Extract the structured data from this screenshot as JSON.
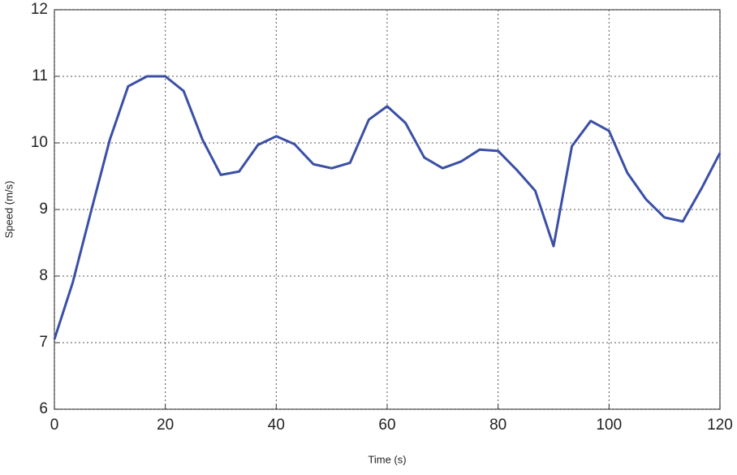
{
  "chart_data": {
    "type": "line",
    "xlabel": "Time (s)",
    "ylabel": "Speed (m/s)",
    "x": [
      0,
      3.3,
      6.7,
      10,
      13.3,
      16.7,
      20,
      23.3,
      26.7,
      30,
      33.3,
      36.7,
      40,
      43.3,
      46.7,
      50,
      53.3,
      56.7,
      60,
      63.3,
      66.7,
      70,
      73.3,
      76.7,
      80,
      83.3,
      86.7,
      90,
      93.3,
      96.7,
      100,
      103.3,
      106.7,
      110,
      113.3,
      116.7,
      120
    ],
    "series": [
      {
        "color": "#3a4fa6",
        "values": [
          7.05,
          7.9,
          9.0,
          10.05,
          10.85,
          11.0,
          11.0,
          10.78,
          10.05,
          9.52,
          9.57,
          9.97,
          10.1,
          9.98,
          9.68,
          9.62,
          9.7,
          10.35,
          10.55,
          10.3,
          9.78,
          9.62,
          9.72,
          9.9,
          9.88,
          9.6,
          9.28,
          8.45,
          9.95,
          10.33,
          10.18,
          9.55,
          9.15,
          8.88,
          8.82,
          9.32,
          9.85
        ]
      }
    ],
    "xlim": [
      0,
      120
    ],
    "xticks": [
      0,
      20,
      40,
      60,
      80,
      100,
      120
    ],
    "ylim": [
      6,
      12
    ],
    "yticks": [
      6,
      7,
      8,
      9,
      10,
      11,
      12
    ],
    "grid": true
  }
}
